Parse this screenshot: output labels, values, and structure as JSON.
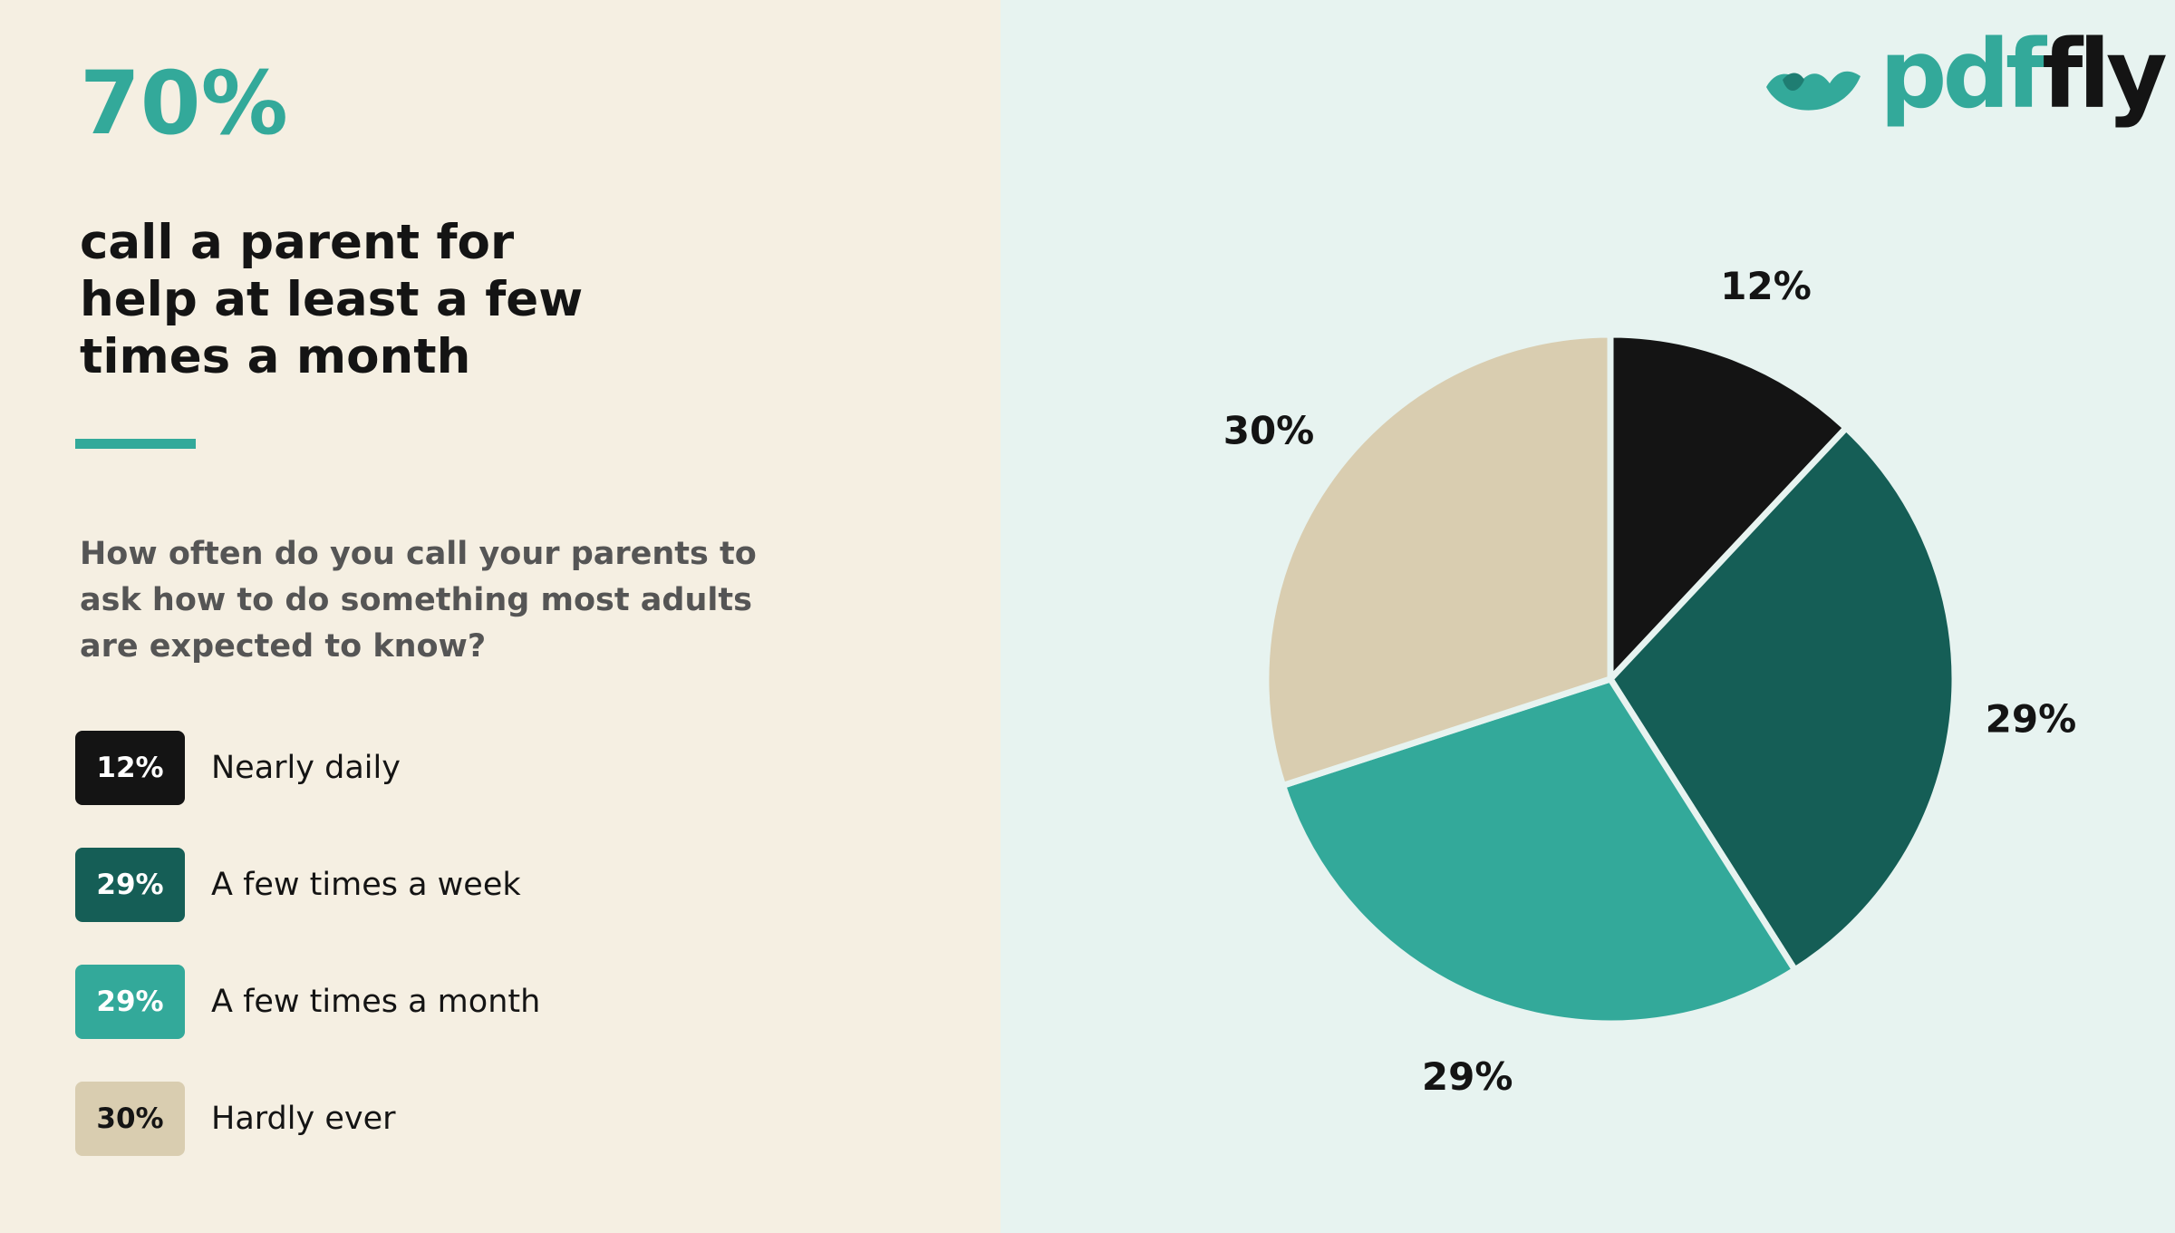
{
  "headline_stat": "70%",
  "headline_text": "call a parent for\nhelp at least a few\ntimes a month",
  "question": "How often do you call your parents to\nask how to do something most adults\nare expected to know?",
  "brand": {
    "name_part1": "pdf",
    "name_part2": "fly",
    "icon": "wave-lips-logo-icon",
    "colors": {
      "teal": "#33a99a",
      "dark": "#141414"
    }
  },
  "legend": [
    {
      "badge": "12%",
      "label": "Nearly daily"
    },
    {
      "badge": "29%",
      "label": "A few times a week"
    },
    {
      "badge": "29%",
      "label": "A few times a month"
    },
    {
      "badge": "30%",
      "label": "Hardly ever"
    }
  ],
  "chart_data": {
    "type": "pie",
    "categories": [
      "Nearly daily",
      "A few times a week",
      "A few times a month",
      "Hardly ever"
    ],
    "values": [
      12,
      29,
      29,
      30
    ],
    "data_labels": [
      "12%",
      "29%",
      "29%",
      "30%"
    ],
    "colors": [
      "#141414",
      "#155e56",
      "#33a99a",
      "#d9cdb0"
    ],
    "start": "12 o'clock",
    "direction": "clockwise"
  }
}
